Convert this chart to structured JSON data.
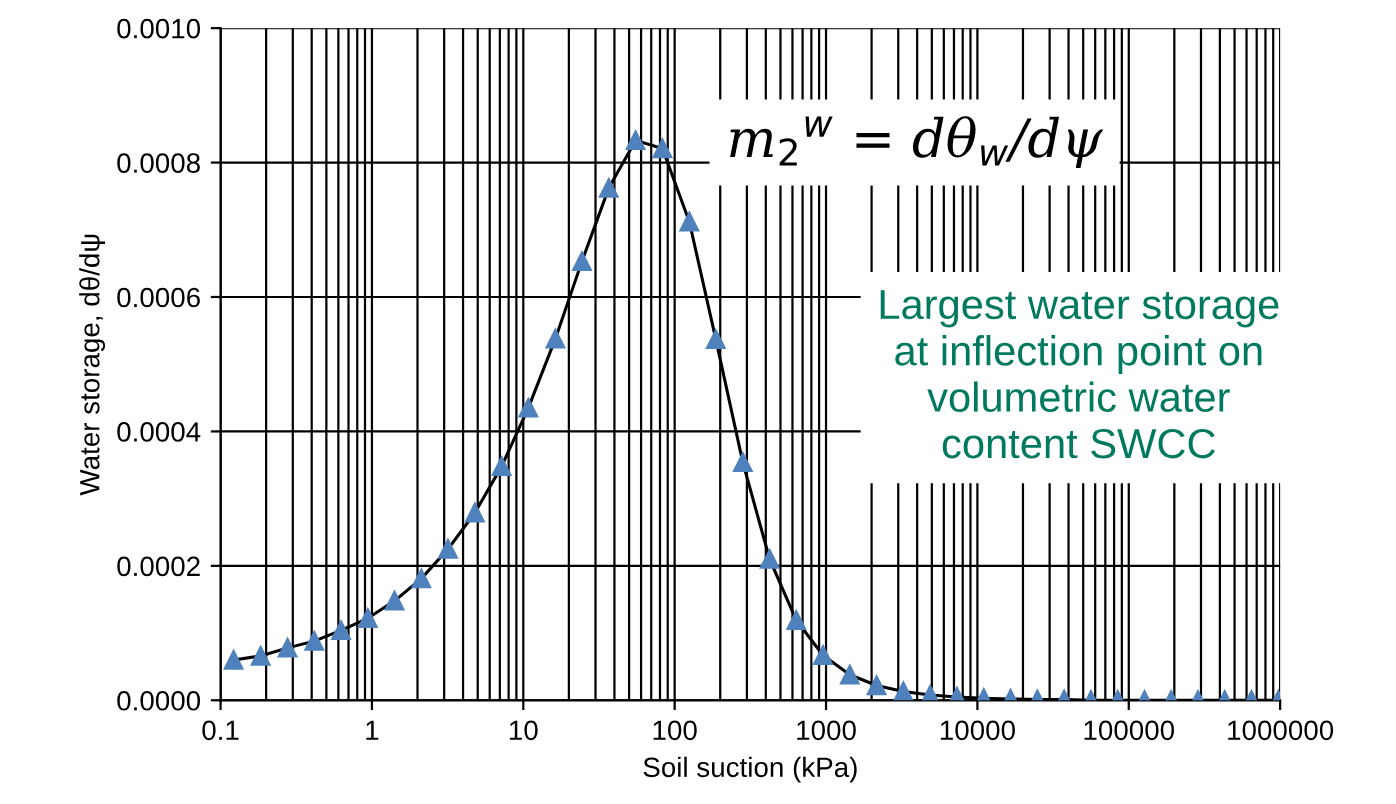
{
  "chart_data": {
    "type": "line",
    "xlabel": "Soil suction (kPa)",
    "ylabel": "Water storage, dθ/dψ",
    "x": [
      0.122,
      0.184,
      0.277,
      0.416,
      0.625,
      0.94,
      1.41,
      2.12,
      3.18,
      4.79,
      7.19,
      10.8,
      16.3,
      24.4,
      36.7,
      55.2,
      83.0,
      125,
      187,
      282,
      424,
      636,
      955,
      1436,
      2158,
      3243,
      4875,
      7328,
      11015,
      16558,
      24889,
      37411,
      56234,
      84528,
      127057,
      190546,
      286418,
      430527,
      647143,
      972747
    ],
    "series": [
      {
        "color": "#4f81bd",
        "values": [
          6e-05,
          6.6e-05,
          7.8e-05,
          8.8e-05,
          0.000104,
          0.000122,
          0.000148,
          0.000181,
          0.000225,
          0.000279,
          0.000348,
          0.000435,
          0.000538,
          0.000653,
          0.000762,
          0.000833,
          0.000821,
          0.000712,
          0.000537,
          0.000354,
          0.00021,
          0.000119,
          6.7e-05,
          3.8e-05,
          2.2e-05,
          1.3e-05,
          8e-06,
          5e-06,
          3e-06,
          2e-06,
          1e-06,
          1e-06,
          0,
          0,
          0,
          0,
          0,
          0,
          0,
          0
        ]
      }
    ],
    "log": "x",
    "marker": "triangle",
    "line_style": "solid",
    "grid": true,
    "legend": false,
    "xlim": [
      0.1,
      1000000
    ],
    "xticks": [
      0.1,
      1,
      10,
      100,
      1000,
      10000,
      100000,
      1000000
    ],
    "ylim": [
      0,
      0.001
    ],
    "yticks": [
      {
        "value": 0,
        "label": "0.0000"
      },
      {
        "value": 0.0002,
        "label": "0.0002"
      },
      {
        "value": 0.0004,
        "label": "0.0004"
      },
      {
        "value": 0.0006,
        "label": "0.0006"
      },
      {
        "value": 0.0008,
        "label": "0.0008"
      },
      {
        "value": 0.001,
        "label": "0.0010"
      }
    ],
    "annotations": [
      "m$_{2}$$^{w}$ = dθ$_{w}$/dψ",
      "Largest water storage\nat inflection point on\nvolumetric water\ncontent SWCC"
    ]
  }
}
